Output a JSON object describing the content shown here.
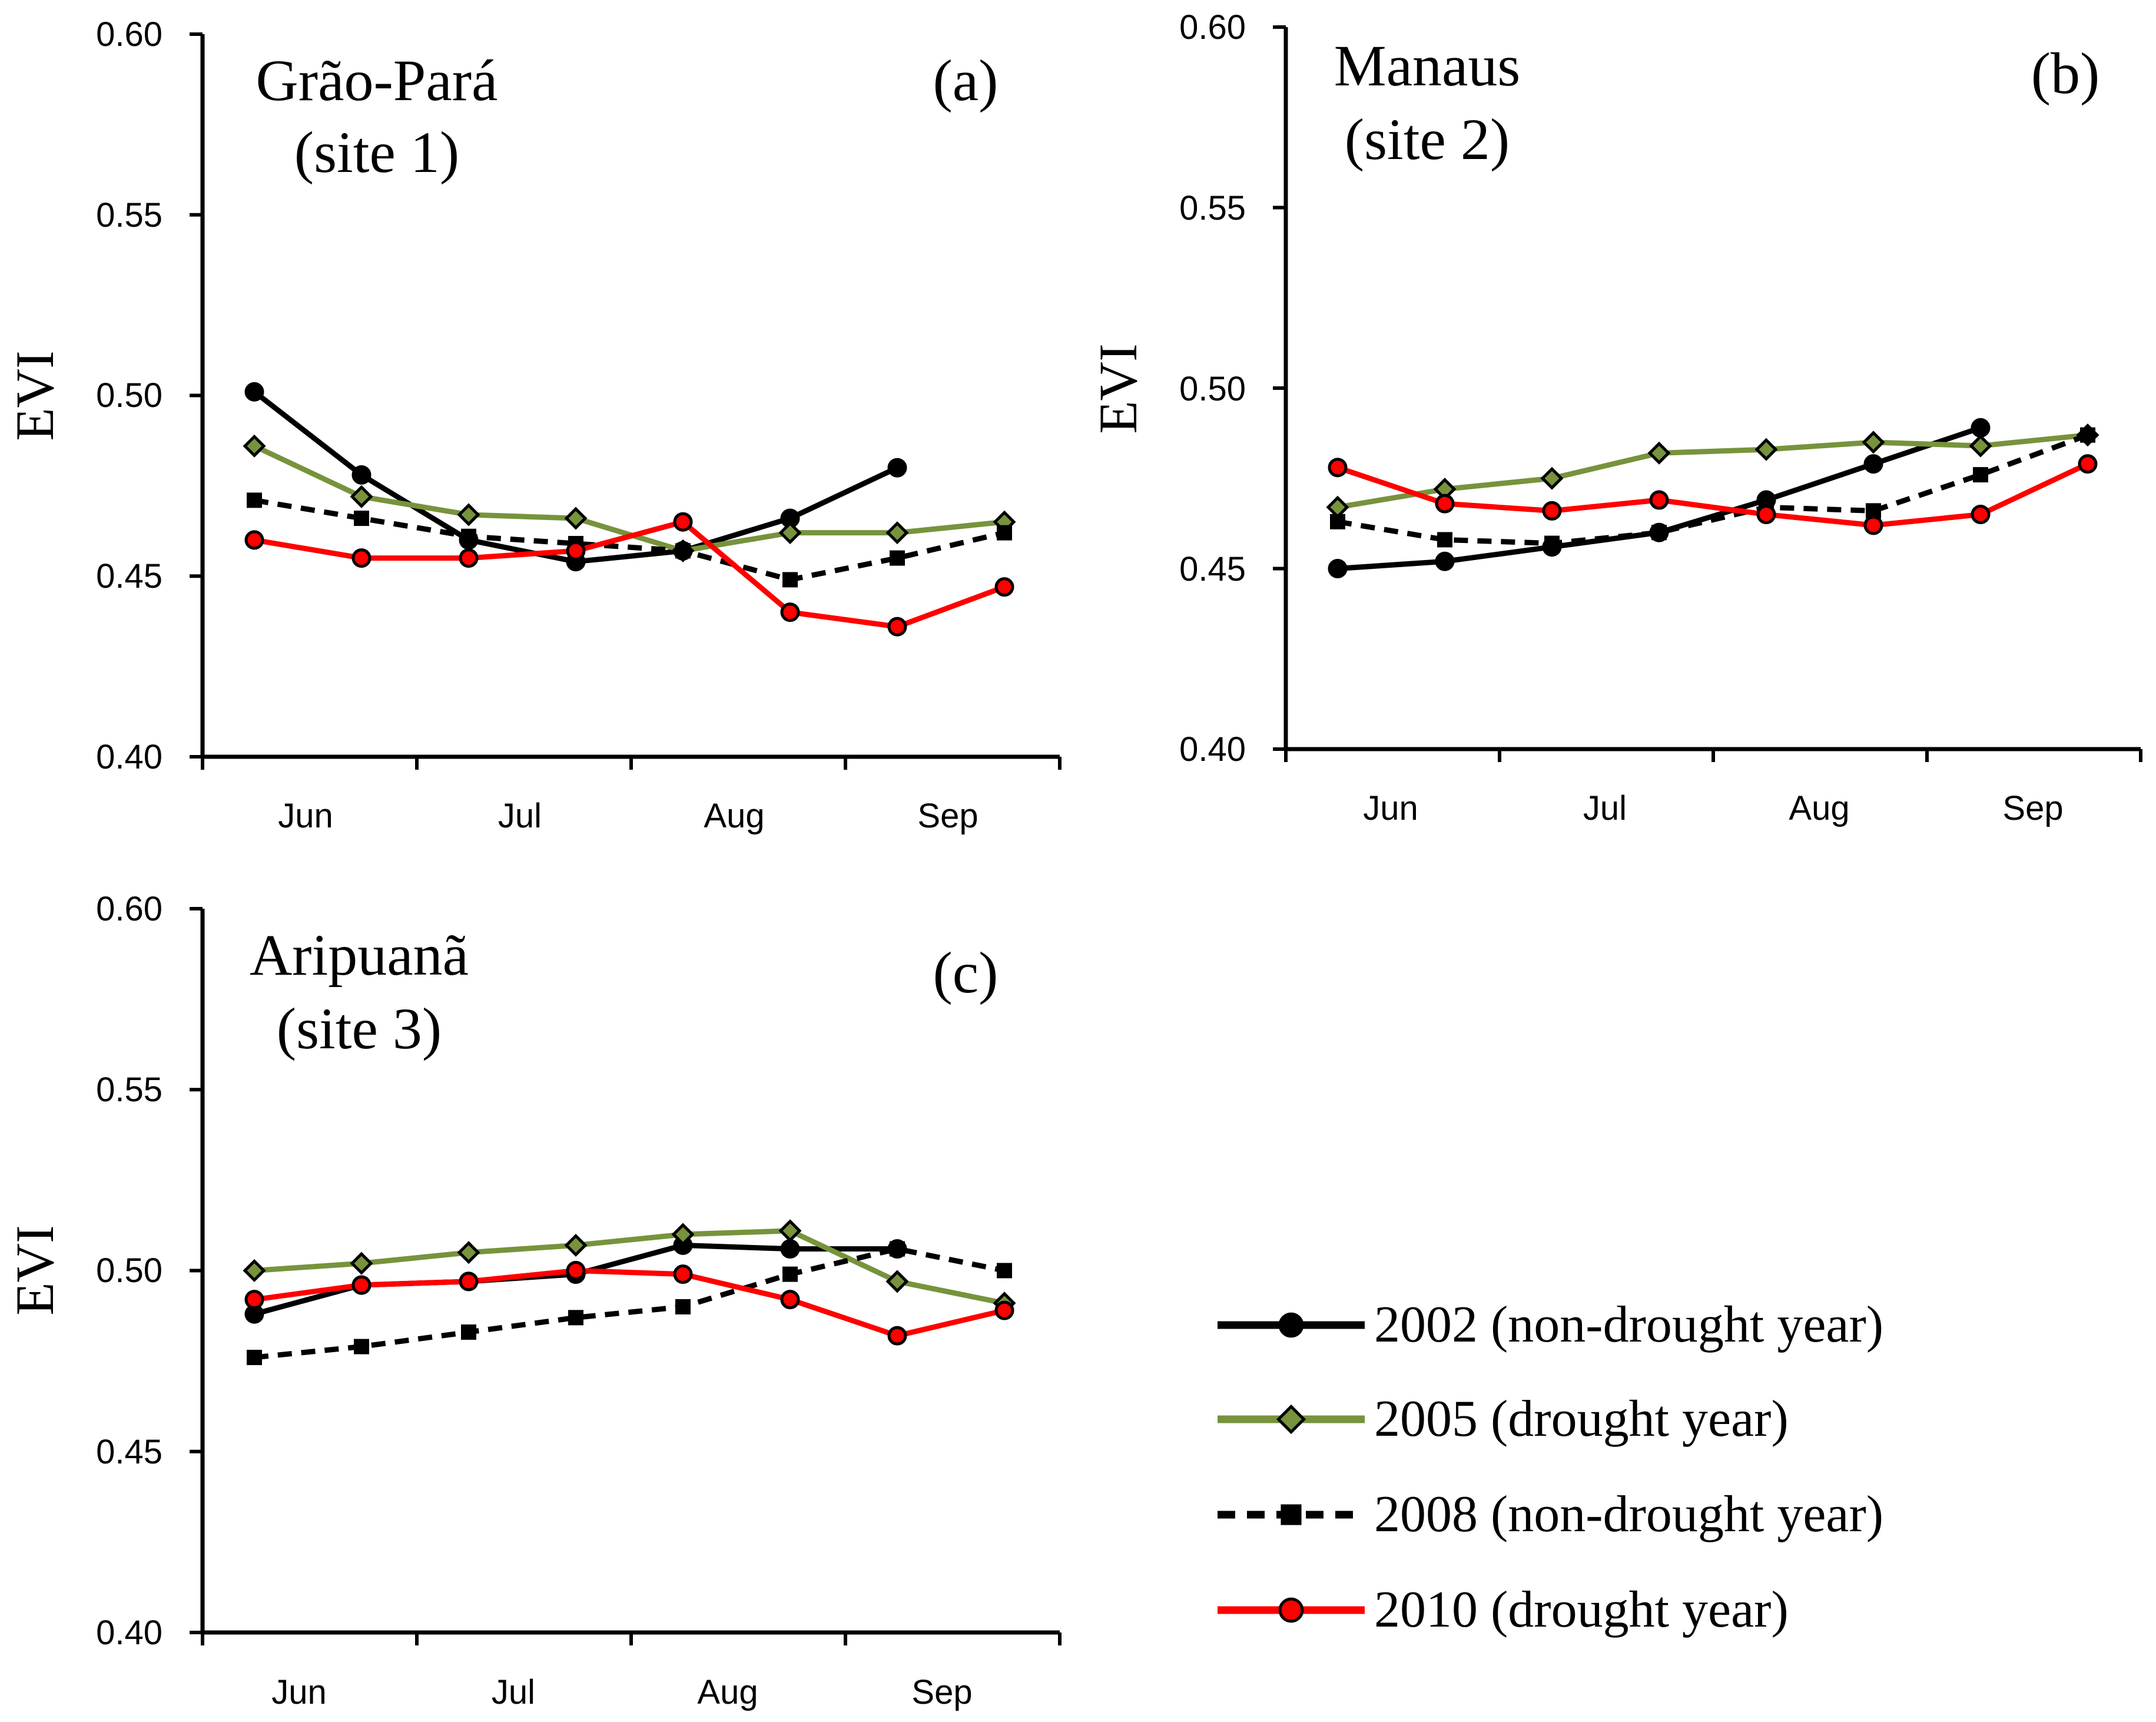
{
  "chart_data": [
    {
      "type": "line",
      "panel_label": "(a)",
      "site_title": "Grão-Pará",
      "site_subtitle": "(site 1)",
      "ylabel": "EVI",
      "ylim": [
        0.4,
        0.6
      ],
      "yticks": [
        "0.40",
        "0.45",
        "0.50",
        "0.55",
        "0.60"
      ],
      "month_labels": [
        "Jun",
        "Jul",
        "Aug",
        "Sep"
      ],
      "series": [
        {
          "key": "2002",
          "values": [
            0.501,
            0.478,
            0.46,
            0.454,
            0.457,
            0.466,
            0.48,
            null
          ]
        },
        {
          "key": "2005",
          "values": [
            0.486,
            0.472,
            0.467,
            0.466,
            0.457,
            0.462,
            0.462,
            0.465
          ]
        },
        {
          "key": "2008",
          "values": [
            0.471,
            0.466,
            0.461,
            0.459,
            0.457,
            0.449,
            0.455,
            0.462
          ]
        },
        {
          "key": "2010",
          "values": [
            0.46,
            0.455,
            0.455,
            0.457,
            0.465,
            0.44,
            0.436,
            0.447
          ]
        }
      ]
    },
    {
      "type": "line",
      "panel_label": "(b)",
      "site_title": "Manaus",
      "site_subtitle": "(site 2)",
      "ylabel": "EVI",
      "ylim": [
        0.4,
        0.6
      ],
      "yticks": [
        "0.40",
        "0.45",
        "0.50",
        "0.55",
        "0.60"
      ],
      "month_labels": [
        "Jun",
        "Jul",
        "Aug",
        "Sep"
      ],
      "series": [
        {
          "key": "2002",
          "values": [
            0.45,
            0.452,
            0.456,
            0.46,
            0.469,
            0.479,
            0.489,
            null
          ]
        },
        {
          "key": "2005",
          "values": [
            0.467,
            0.472,
            0.475,
            0.482,
            0.483,
            0.485,
            0.484,
            0.487
          ]
        },
        {
          "key": "2008",
          "values": [
            0.463,
            0.458,
            0.457,
            0.46,
            0.467,
            0.466,
            0.476,
            0.487
          ]
        },
        {
          "key": "2010",
          "values": [
            0.478,
            0.468,
            0.466,
            0.469,
            0.465,
            0.462,
            0.465,
            0.479
          ]
        }
      ]
    },
    {
      "type": "line",
      "panel_label": "(c)",
      "site_title": "Aripuanã",
      "site_subtitle": "(site 3)",
      "ylabel": "EVI",
      "ylim": [
        0.4,
        0.6
      ],
      "yticks": [
        "0.40",
        "0.45",
        "0.50",
        "0.55",
        "0.60"
      ],
      "month_labels": [
        "Jun",
        "Jul",
        "Aug",
        "Sep"
      ],
      "series": [
        {
          "key": "2002",
          "values": [
            0.488,
            0.496,
            0.497,
            0.499,
            0.507,
            0.506,
            0.506,
            null
          ]
        },
        {
          "key": "2005",
          "values": [
            0.5,
            0.502,
            0.505,
            0.507,
            0.51,
            0.511,
            0.497,
            0.491
          ]
        },
        {
          "key": "2008",
          "values": [
            0.476,
            0.479,
            0.483,
            0.487,
            0.49,
            0.499,
            0.506,
            0.5
          ]
        },
        {
          "key": "2010",
          "values": [
            0.492,
            0.496,
            0.497,
            0.5,
            0.499,
            0.492,
            0.482,
            0.489
          ]
        }
      ]
    }
  ],
  "legend": [
    {
      "key": "2002",
      "label": "2002 (non-drought year)",
      "color": "#000000",
      "marker": "circle",
      "dashed": false
    },
    {
      "key": "2005",
      "label": "2005 (drought year)",
      "color": "#77933c",
      "marker": "diamond",
      "dashed": false
    },
    {
      "key": "2008",
      "label": "2008 (non-drought year)",
      "color": "#000000",
      "marker": "square",
      "dashed": true
    },
    {
      "key": "2010",
      "label": "2010 (drought year)",
      "color": "#ff0000",
      "marker": "circle",
      "dashed": false
    }
  ]
}
